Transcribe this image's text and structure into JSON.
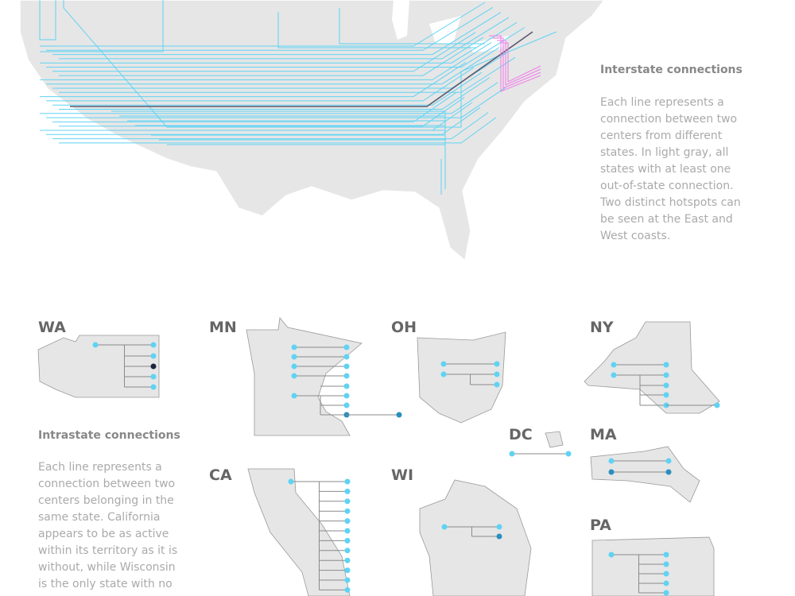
{
  "interstate": {
    "title": "Interstate connections",
    "description": "Each line represents a connection between two centers from different states. In light gray, all states with at least one out-of-state connection. Two distinct hotspots can be seen at the East and West coasts."
  },
  "intrastate": {
    "title": "Intrastate connections",
    "description": "Each line represents a connection between two centers belonging in the same state. California appears to be as active within its territory as it is without, while Wisconsin is the only state with no"
  },
  "states": [
    "WA",
    "MN",
    "OH",
    "NY",
    "DC",
    "MA",
    "CA",
    "WI",
    "PA"
  ]
}
